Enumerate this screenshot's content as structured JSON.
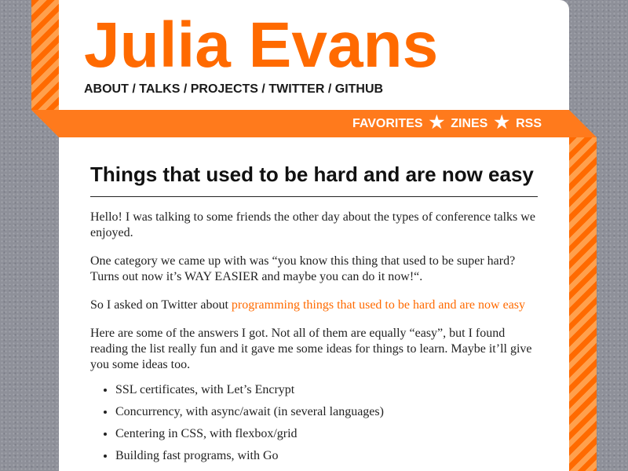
{
  "site": {
    "title": "Julia Evans",
    "colors": {
      "accent": "#ff6a00",
      "ribbon": "#ff7a1c",
      "background": "#8e9099"
    }
  },
  "top_nav": [
    {
      "label": "ABOUT"
    },
    {
      "label": "TALKS"
    },
    {
      "label": "PROJECTS"
    },
    {
      "label": "TWITTER"
    },
    {
      "label": "GITHUB"
    }
  ],
  "top_nav_separator": "/",
  "ribbon_nav": {
    "favorites": "FAVORITES",
    "zines": "ZINES",
    "rss": "RSS",
    "star": "★"
  },
  "post": {
    "title": "Things that used to be hard and are now easy",
    "intro": "Hello! I was talking to some friends the other day about the types of conference talks we enjoyed.",
    "category": "One category we came up with was “you know this thing that used to be super hard? Turns out now it’s WAY EASIER and maybe you can do it now!“.",
    "twitter_prefix": "So I asked on Twitter about ",
    "twitter_link": "programming things that used to be hard and are now easy",
    "answers_intro": "Here are some of the answers I got. Not all of them are equally “easy”, but I found reading the list really fun and it gave me some ideas for things to learn. Maybe it’ll give you some ideas too.",
    "answers": [
      "SSL certificates, with Let’s Encrypt",
      "Concurrency, with async/await (in several languages)",
      "Centering in CSS, with flexbox/grid",
      "Building fast programs, with Go"
    ]
  }
}
